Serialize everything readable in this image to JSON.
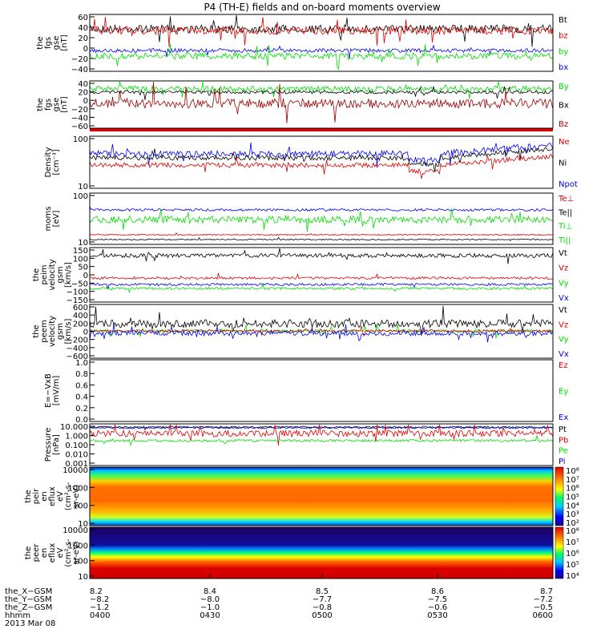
{
  "title": "P4 (TH-E) fields and on-board moments overview",
  "colors": {
    "black": "#000000",
    "red": "#dd0000",
    "green": "#00dd00",
    "blue": "#0000ee",
    "darkred": "#990000"
  },
  "panels": [
    {
      "ylabel": [
        "the",
        "fgs",
        "gse",
        "[nT]"
      ],
      "ticks": [
        "60",
        "40",
        "20",
        "0",
        "−20",
        "−40"
      ],
      "legend": [
        {
          "label": "Bt",
          "color": "black"
        },
        {
          "label": "bz",
          "color": "red"
        },
        {
          "label": "by",
          "color": "green"
        },
        {
          "label": "bx",
          "color": "blue"
        }
      ]
    },
    {
      "ylabel": [
        "the",
        "fgs",
        "gse",
        "[nT]"
      ],
      "ticks": [
        "40",
        "20",
        "0",
        "−20",
        "−40",
        "−60"
      ],
      "legend": [
        {
          "label": "By",
          "color": "green"
        },
        {
          "label": "Bx",
          "color": "black"
        },
        {
          "label": "Bz",
          "color": "darkred"
        }
      ]
    },
    {
      "ylabel": [
        "Density",
        "[cm⁻³]"
      ],
      "ticks": [
        "100",
        "10"
      ],
      "legend": [
        {
          "label": "Ne",
          "color": "red"
        },
        {
          "label": "Ni",
          "color": "black"
        },
        {
          "label": "Npot",
          "color": "blue"
        }
      ]
    },
    {
      "ylabel": [
        "moms",
        "[eV]"
      ],
      "ticks": [
        "100",
        "10"
      ],
      "legend": [
        {
          "label": "Te⊥",
          "color": "red"
        },
        {
          "label": "Te||",
          "color": "black"
        },
        {
          "label": "Ti⊥",
          "color": "green"
        },
        {
          "label": "Ti||",
          "color": "green"
        }
      ]
    },
    {
      "ylabel": [
        "the",
        "peim",
        "velocity",
        "gsm",
        "[km/s]"
      ],
      "ticks": [
        "150",
        "100",
        "50",
        "0",
        "−50",
        "−100",
        "−150"
      ],
      "legend": [
        {
          "label": "Vt",
          "color": "black"
        },
        {
          "label": "Vz",
          "color": "red"
        },
        {
          "label": "Vy",
          "color": "green"
        },
        {
          "label": "Vx",
          "color": "blue"
        }
      ]
    },
    {
      "ylabel": [
        "the",
        "peem",
        "velocity",
        "gsm",
        "[km/s]"
      ],
      "ticks": [
        "600",
        "400",
        "200",
        "0",
        "−200",
        "−400",
        "−600"
      ],
      "legend": [
        {
          "label": "Vt",
          "color": "black"
        },
        {
          "label": "Vz",
          "color": "red"
        },
        {
          "label": "Vy",
          "color": "green"
        },
        {
          "label": "Vx",
          "color": "blue"
        }
      ]
    },
    {
      "ylabel": [
        "E=−VxB",
        "[mV/m]"
      ],
      "ticks": [
        "1.0",
        "0.8",
        "0.6",
        "0.4",
        "0.2",
        "0.0"
      ],
      "legend": [
        {
          "label": "Ez",
          "color": "red"
        },
        {
          "label": "Ey",
          "color": "green"
        },
        {
          "label": "Ex",
          "color": "blue"
        }
      ]
    },
    {
      "ylabel": [
        "Pressure",
        "[nPa]"
      ],
      "ticks": [
        "10.000",
        "1.000",
        "0.100",
        "0.010",
        "0.001"
      ],
      "legend": [
        {
          "label": "Pt",
          "color": "black"
        },
        {
          "label": "Pb",
          "color": "red"
        },
        {
          "label": "Pe",
          "color": "green"
        },
        {
          "label": "Pi",
          "color": "blue"
        }
      ]
    },
    {
      "ylabel": [
        "the",
        "peir",
        "en",
        "eflux",
        "eV",
        "(cm²-s-",
        "sr-eV)"
      ],
      "ticks": [
        "10000",
        "1000",
        "100",
        "10"
      ],
      "colorbar": [
        "10⁸",
        "10⁷",
        "10⁶",
        "10⁵",
        "10⁴",
        "10³",
        "10²"
      ]
    },
    {
      "ylabel": [
        "the",
        "peer",
        "en",
        "eflux",
        "eV",
        "(cm²-s-",
        "sr-eV)"
      ],
      "ticks": [
        "10000",
        "1000",
        "100",
        "10"
      ],
      "colorbar": [
        "10⁸",
        "10⁷",
        "10⁶",
        "10⁵",
        "10⁴"
      ]
    }
  ],
  "xaxis": {
    "row_labels": [
      "the_X−GSM",
      "the_Y−GSM",
      "the_Z−GSM",
      "hhmm",
      "2013 Mar 08"
    ],
    "columns": [
      [
        "8.2",
        "−8.2",
        "−1.2",
        "0400"
      ],
      [
        "8.4",
        "−8.0",
        "−1.0",
        "0430"
      ],
      [
        "8.5",
        "−7.7",
        "−0.8",
        "0500"
      ],
      [
        "8.6",
        "−7.5",
        "−0.6",
        "0530"
      ],
      [
        "8.7",
        "−7.2",
        "−0.5",
        "0600"
      ]
    ]
  }
}
